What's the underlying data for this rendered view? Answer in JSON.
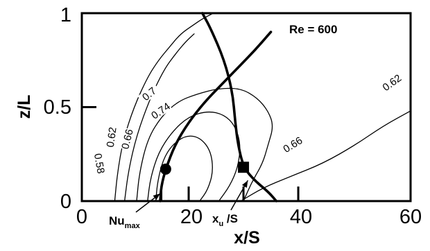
{
  "chart_data": {
    "type": "line",
    "title": "",
    "xlabel": "x/S",
    "ylabel": "z/L",
    "xlim": [
      0,
      60
    ],
    "ylim": [
      0,
      1
    ],
    "xticks": [
      "0",
      "20",
      "40",
      "60"
    ],
    "yticks": [
      "0",
      "0.5",
      "1"
    ],
    "in_plot_label": "Re = 600",
    "grid": false,
    "series": [
      {
        "name": "Nu_max",
        "x": [
          14.3,
          14.5,
          15.3,
          17.0,
          19.5,
          22.5,
          25.5,
          28.5,
          31.5,
          34.5
        ],
        "z": [
          0.0,
          0.08,
          0.17,
          0.3,
          0.42,
          0.53,
          0.62,
          0.71,
          0.8,
          0.9
        ]
      },
      {
        "name": "x_u/S",
        "x": [
          22.0,
          23.5,
          26.0,
          27.5,
          28.0,
          28.5,
          29.5,
          31.5,
          34.0,
          35.5
        ],
        "z": [
          1.0,
          0.92,
          0.75,
          0.58,
          0.42,
          0.3,
          0.18,
          0.11,
          0.05,
          0.0
        ]
      },
      {
        "name": "Nu = 0.58",
        "x": [
          6.0,
          6.5,
          7.5,
          9.5,
          12.0,
          14.0,
          16.0,
          18.0,
          20.5,
          22.0,
          24.0
        ],
        "z": [
          0.0,
          0.15,
          0.32,
          0.5,
          0.66,
          0.75,
          0.82,
          0.89,
          0.94,
          0.97,
          1.0
        ]
      },
      {
        "name": "Nu = 0.62",
        "x": [
          7.8,
          8.5,
          10.0,
          12.5,
          15.0,
          17.0,
          19.0,
          20.5
        ],
        "z": [
          0.0,
          0.16,
          0.35,
          0.55,
          0.7,
          0.78,
          0.85,
          0.89
        ]
      },
      {
        "name": "Nu = 0.62",
        "x": [
          29.0,
          33.0,
          38.0,
          44.0,
          50.0,
          55.0,
          60.0
        ],
        "z": [
          0.0,
          0.07,
          0.13,
          0.2,
          0.3,
          0.4,
          0.48
        ]
      },
      {
        "name": "Nu = 0.66",
        "x": [
          10.0,
          10.5,
          12.0,
          14.5,
          17.5,
          21.0,
          25.0,
          29.0,
          32.0,
          34.0,
          35.0,
          34.0,
          33.0,
          31.0,
          29.5
        ],
        "z": [
          0.0,
          0.15,
          0.33,
          0.45,
          0.53,
          0.57,
          0.6,
          0.6,
          0.55,
          0.48,
          0.4,
          0.3,
          0.2,
          0.1,
          0.0
        ]
      },
      {
        "name": "Nu = 0.7",
        "x": [
          12.0,
          12.5,
          14.0,
          16.5,
          19.5,
          23.0,
          26.0,
          28.0,
          29.0,
          28.5,
          27.0,
          25.0
        ],
        "z": [
          0.0,
          0.12,
          0.26,
          0.37,
          0.45,
          0.48,
          0.46,
          0.4,
          0.3,
          0.18,
          0.08,
          0.0
        ]
      },
      {
        "name": "Nu = 0.74",
        "x": [
          13.5,
          13.8,
          14.8,
          16.5,
          19.0,
          21.5,
          23.5,
          24.0,
          23.0,
          21.5
        ],
        "z": [
          0.0,
          0.1,
          0.22,
          0.3,
          0.35,
          0.34,
          0.27,
          0.16,
          0.06,
          0.0
        ]
      }
    ],
    "markers": [
      {
        "shape": "circle",
        "x": 15.3,
        "z": 0.17
      },
      {
        "shape": "square",
        "x": 29.5,
        "z": 0.18
      }
    ],
    "bottom_ticks": [
      14.5,
      19.5,
      29.5,
      39.5
    ],
    "contour_labels": [
      {
        "text": "0.58",
        "x": 3.2,
        "z": 0.2,
        "angle": 80
      },
      {
        "text": "0.62",
        "x": 5.4,
        "z": 0.34,
        "angle": -82
      },
      {
        "text": "0.66",
        "x": 8.3,
        "z": 0.33,
        "angle": -76
      },
      {
        "text": "0.7",
        "x": 12.3,
        "z": 0.57,
        "angle": -40
      },
      {
        "text": "0.74",
        "x": 14.4,
        "z": 0.48,
        "angle": -35
      },
      {
        "text": "0.66",
        "x": 38.5,
        "z": 0.3,
        "angle": -32
      },
      {
        "text": "0.62",
        "x": 56.6,
        "z": 0.63,
        "angle": -36
      }
    ],
    "annotations": [
      {
        "text": "Nu",
        "sub": "max",
        "target": "Nu_max"
      },
      {
        "text": "x",
        "sub": "u",
        "suffix": " /S",
        "target": "x_u/S"
      }
    ]
  }
}
